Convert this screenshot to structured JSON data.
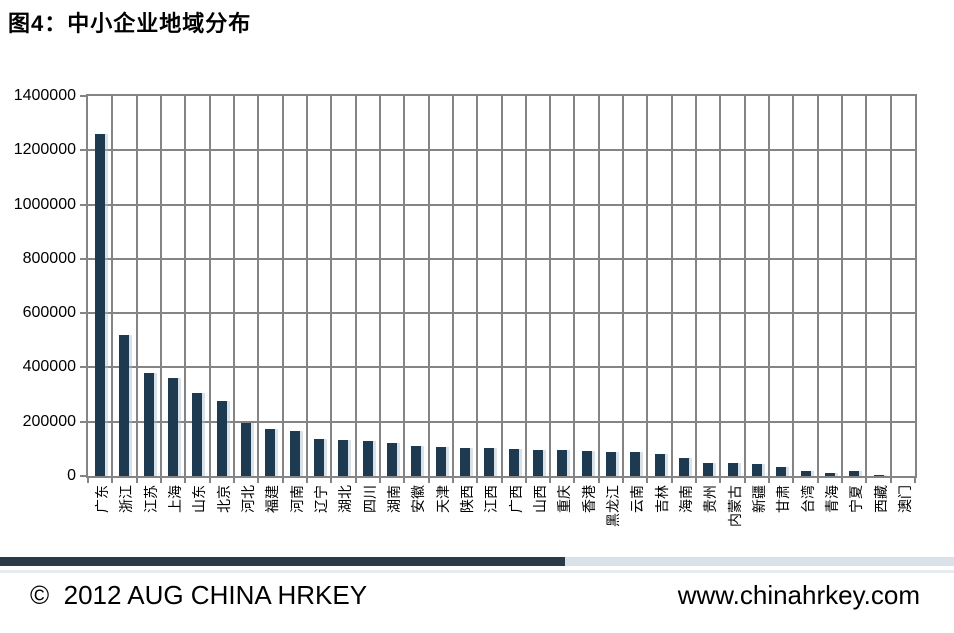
{
  "header": {
    "title": "图4：中小企业地域分布"
  },
  "footer": {
    "copyright": "©  2012 AUG CHINA HRKEY",
    "website": "www.chinahrkey.com",
    "divider_dark_color": "#293a49",
    "divider_light_color": "#dae1e8"
  },
  "colors": {
    "bar": "#1e3a50",
    "grid": "#848484",
    "background": "#ffffff",
    "text": "#000000"
  },
  "chart_data": {
    "type": "bar",
    "title": "图4：中小企业地域分布",
    "xlabel": "",
    "ylabel": "",
    "ylim": [
      0,
      1400000
    ],
    "ytick_interval": 200000,
    "ytick_labels": [
      "0",
      "200000",
      "400000",
      "600000",
      "800000",
      "1000000",
      "1200000",
      "1400000"
    ],
    "grid": true,
    "legend": "none",
    "bar_color": "#1e3a50",
    "categories": [
      "广东",
      "浙江",
      "江苏",
      "上海",
      "山东",
      "北京",
      "河北",
      "福建",
      "河南",
      "辽宁",
      "湖北",
      "四川",
      "湖南",
      "安徽",
      "天津",
      "陕西",
      "江西",
      "广西",
      "山西",
      "重庆",
      "香港",
      "黑龙江",
      "云南",
      "吉林",
      "海南",
      "贵州",
      "内蒙古",
      "新疆",
      "甘肃",
      "台湾",
      "青海",
      "宁夏",
      "西藏",
      "澳门"
    ],
    "values": [
      1260000,
      520000,
      380000,
      360000,
      305000,
      275000,
      195000,
      172000,
      165000,
      138000,
      132000,
      128000,
      122000,
      110000,
      106000,
      104000,
      102000,
      100000,
      97000,
      95000,
      93000,
      90000,
      87000,
      80000,
      65000,
      48000,
      48000,
      45000,
      34000,
      20000,
      12000,
      17000,
      5000,
      1000
    ]
  }
}
